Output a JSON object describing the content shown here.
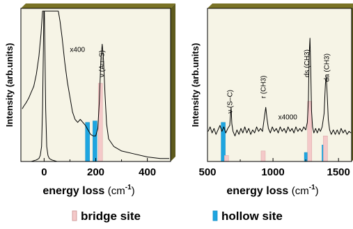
{
  "colors": {
    "bridge": "#f4c9c9",
    "hollow": "#1ea5e0",
    "panel": "#f6f4e6",
    "shadow": "#7a7326"
  },
  "legend": [
    {
      "label": "bridge site",
      "color": "#f4c9c9"
    },
    {
      "label": "hollow site",
      "color": "#1ea5e0"
    }
  ],
  "chart_data": [
    {
      "type": "line",
      "xlabel": "energy loss",
      "xunit": "(cm-1)",
      "ylabel": "Intensity (arb.units)",
      "xlim": [
        -90,
        490
      ],
      "ylim": [
        0,
        1
      ],
      "xticks": [
        0,
        200,
        400
      ],
      "annotations": [
        {
          "text": "x400",
          "x": 100,
          "y": 0.73
        },
        {
          "text": "ν (Au–S)",
          "x": 232,
          "y": 0.56,
          "rotate": true
        }
      ],
      "bars": {
        "hollow": [
          {
            "x": 168,
            "y": 0.26
          },
          {
            "x": 197,
            "y": 0.27
          }
        ],
        "bridge": [
          {
            "x": 218,
            "y": 0.52
          }
        ]
      },
      "series": [
        {
          "points": [
            [
              -85,
              0.35
            ],
            [
              -78,
              0.37
            ],
            [
              -70,
              0.39
            ],
            [
              -60,
              0.42
            ],
            [
              -50,
              0.46
            ],
            [
              -40,
              0.5
            ],
            [
              -30,
              0.58
            ],
            [
              -20,
              0.7
            ],
            [
              -12,
              0.85
            ],
            [
              -6,
              1.0
            ],
            [
              6,
              1.0
            ],
            [
              30,
              1.0
            ],
            [
              45,
              1.0
            ],
            [
              55,
              1.0
            ],
            [
              62,
              0.93
            ],
            [
              70,
              0.82
            ],
            [
              80,
              0.66
            ],
            [
              90,
              0.53
            ],
            [
              100,
              0.43
            ],
            [
              110,
              0.33
            ],
            [
              120,
              0.28
            ],
            [
              130,
              0.26
            ],
            [
              140,
              0.28
            ],
            [
              150,
              0.26
            ],
            [
              160,
              0.24
            ],
            [
              170,
              0.21
            ],
            [
              180,
              0.18
            ],
            [
              190,
              0.17
            ],
            [
              200,
              0.17
            ],
            [
              208,
              0.22
            ],
            [
              214,
              0.4
            ],
            [
              220,
              0.68
            ],
            [
              225,
              0.78
            ],
            [
              230,
              0.68
            ],
            [
              236,
              0.45
            ],
            [
              242,
              0.25
            ],
            [
              250,
              0.15
            ],
            [
              270,
              0.1
            ],
            [
              300,
              0.07
            ],
            [
              350,
              0.05
            ],
            [
              400,
              0.03
            ],
            [
              450,
              0.02
            ],
            [
              485,
              0.02
            ]
          ]
        },
        {
          "points": [
            [
              -85,
              0
            ],
            [
              -50,
              0
            ],
            [
              -30,
              0.01
            ],
            [
              -20,
              0.02
            ],
            [
              -15,
              0.04
            ],
            [
              -10,
              0.1
            ],
            [
              -6,
              0.35
            ],
            [
              -3,
              0.75
            ],
            [
              -1,
              1.0
            ],
            [
              1,
              1.0
            ],
            [
              3,
              0.75
            ],
            [
              6,
              0.35
            ],
            [
              10,
              0.1
            ],
            [
              15,
              0.04
            ],
            [
              20,
              0.02
            ],
            [
              30,
              0.01
            ],
            [
              50,
              0
            ],
            [
              100,
              0
            ],
            [
              200,
              0
            ],
            [
              485,
              0
            ]
          ]
        }
      ]
    },
    {
      "type": "line",
      "xlabel": "energy loss",
      "xunit": "(cm-1)",
      "ylabel": "Intensity (arb.units)",
      "xlim": [
        500,
        1600
      ],
      "ylim": [
        0,
        1
      ],
      "xticks": [
        500,
        1000,
        1500
      ],
      "annotations": [
        {
          "text": "ν (S–C)",
          "x": 690,
          "y": 0.32,
          "rotate": true
        },
        {
          "text": "r (CH3)",
          "x": 945,
          "y": 0.42,
          "rotate": true
        },
        {
          "text": "x4000",
          "x": 1040,
          "y": 0.28
        },
        {
          "text": "ds (CH3)",
          "x": 1275,
          "y": 0.56,
          "rotate": true
        },
        {
          "text": "da (CH3)",
          "x": 1428,
          "y": 0.53,
          "rotate": true
        }
      ],
      "bars": {
        "hollow": [
          {
            "x": 620,
            "y": 0.26
          },
          {
            "x": 1255,
            "y": 0.06
          },
          {
            "x": 1390,
            "y": 0.11
          }
        ],
        "bridge": [
          {
            "x": 645,
            "y": 0.04
          },
          {
            "x": 925,
            "y": 0.07
          },
          {
            "x": 1280,
            "y": 0.4
          },
          {
            "x": 1400,
            "y": 0.17
          }
        ]
      },
      "series": [
        {
          "points": [
            [
              505,
              0.2
            ],
            [
              520,
              0.23
            ],
            [
              535,
              0.19
            ],
            [
              550,
              0.22
            ],
            [
              565,
              0.18
            ],
            [
              580,
              0.21
            ],
            [
              595,
              0.24
            ],
            [
              610,
              0.2
            ],
            [
              625,
              0.23
            ],
            [
              640,
              0.19
            ],
            [
              655,
              0.22
            ],
            [
              670,
              0.24
            ],
            [
              680,
              0.36
            ],
            [
              686,
              0.25
            ],
            [
              695,
              0.2
            ],
            [
              710,
              0.17
            ],
            [
              725,
              0.21
            ],
            [
              740,
              0.18
            ],
            [
              755,
              0.22
            ],
            [
              770,
              0.19
            ],
            [
              785,
              0.23
            ],
            [
              800,
              0.19
            ],
            [
              815,
              0.22
            ],
            [
              830,
              0.18
            ],
            [
              845,
              0.21
            ],
            [
              860,
              0.19
            ],
            [
              875,
              0.23
            ],
            [
              890,
              0.2
            ],
            [
              905,
              0.22
            ],
            [
              920,
              0.2
            ],
            [
              935,
              0.3
            ],
            [
              945,
              0.36
            ],
            [
              955,
              0.28
            ],
            [
              965,
              0.22
            ],
            [
              980,
              0.19
            ],
            [
              995,
              0.23
            ],
            [
              1010,
              0.2
            ],
            [
              1025,
              0.22
            ],
            [
              1040,
              0.19
            ],
            [
              1055,
              0.23
            ],
            [
              1070,
              0.2
            ],
            [
              1085,
              0.22
            ],
            [
              1100,
              0.19
            ],
            [
              1115,
              0.23
            ],
            [
              1130,
              0.2
            ],
            [
              1145,
              0.22
            ],
            [
              1160,
              0.19
            ],
            [
              1175,
              0.23
            ],
            [
              1190,
              0.2
            ],
            [
              1205,
              0.22
            ],
            [
              1220,
              0.2
            ],
            [
              1235,
              0.23
            ],
            [
              1250,
              0.21
            ],
            [
              1262,
              0.26
            ],
            [
              1270,
              0.4
            ],
            [
              1276,
              0.7
            ],
            [
              1282,
              0.82
            ],
            [
              1288,
              0.62
            ],
            [
              1294,
              0.34
            ],
            [
              1302,
              0.23
            ],
            [
              1312,
              0.19
            ],
            [
              1325,
              0.22
            ],
            [
              1338,
              0.19
            ],
            [
              1350,
              0.22
            ],
            [
              1362,
              0.2
            ],
            [
              1375,
              0.23
            ],
            [
              1390,
              0.32
            ],
            [
              1400,
              0.52
            ],
            [
              1407,
              0.56
            ],
            [
              1414,
              0.44
            ],
            [
              1422,
              0.28
            ],
            [
              1432,
              0.21
            ],
            [
              1445,
              0.18
            ],
            [
              1460,
              0.21
            ],
            [
              1475,
              0.18
            ],
            [
              1490,
              0.21
            ],
            [
              1505,
              0.18
            ],
            [
              1520,
              0.22
            ],
            [
              1535,
              0.19
            ],
            [
              1550,
              0.21
            ],
            [
              1565,
              0.18
            ],
            [
              1580,
              0.2
            ],
            [
              1595,
              0.19
            ]
          ]
        }
      ]
    }
  ]
}
